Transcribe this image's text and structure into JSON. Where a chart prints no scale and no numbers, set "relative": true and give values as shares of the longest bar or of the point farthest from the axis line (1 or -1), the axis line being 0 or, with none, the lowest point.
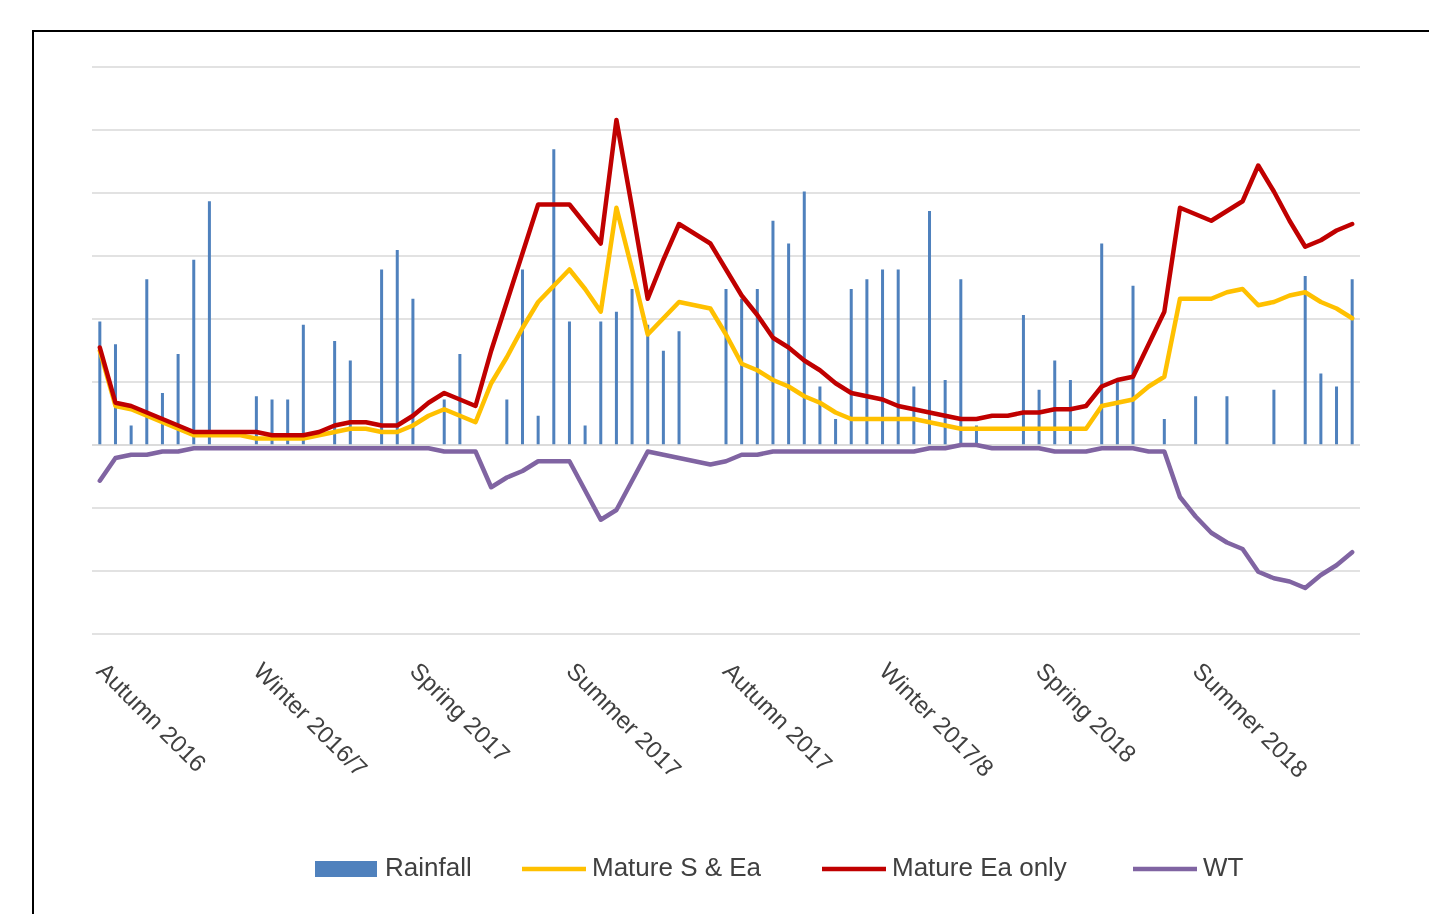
{
  "chart_data": {
    "type": "line",
    "relative": true,
    "grid": "y",
    "legend": "bottom",
    "categories": [
      "Autumn 2016",
      null,
      null,
      null,
      null,
      null,
      null,
      null,
      null,
      null,
      "Winter 2016/7",
      null,
      null,
      null,
      null,
      null,
      null,
      null,
      null,
      null,
      "Spring 2017",
      null,
      null,
      null,
      null,
      null,
      null,
      null,
      null,
      null,
      "Summer 2017",
      null,
      null,
      null,
      null,
      null,
      null,
      null,
      null,
      null,
      "Autumn 2017",
      null,
      null,
      null,
      null,
      null,
      null,
      null,
      null,
      null,
      "Winter 2017/8",
      null,
      null,
      null,
      null,
      null,
      null,
      null,
      null,
      null,
      "Spring 2018",
      null,
      null,
      null,
      null,
      null,
      null,
      null,
      null,
      null,
      "Summer 2018",
      null,
      null,
      null,
      null,
      null,
      null,
      null,
      null,
      null,
      null
    ],
    "series": [
      {
        "name": "Rainfall",
        "type": "bar",
        "color": "#4f81bd",
        "values": [
          0.38,
          0.31,
          0.06,
          0.51,
          0.16,
          0.28,
          0.57,
          0.75,
          0,
          0,
          0.15,
          0.14,
          0.14,
          0.37,
          0,
          0.32,
          0.26,
          0,
          0.54,
          0.6,
          0.45,
          0,
          0.14,
          0.28,
          null,
          0,
          0.14,
          0.54,
          0.09,
          0.91,
          0.38,
          0.06,
          0.38,
          0.41,
          0.48,
          0.37,
          0.29,
          0.35,
          0,
          0,
          0.48,
          0.45,
          0.48,
          0.69,
          0.62,
          0.78,
          0.18,
          0.08,
          0.48,
          0.51,
          0.54,
          0.54,
          0.18,
          0.72,
          0.2,
          0.51,
          0.06,
          0,
          0,
          0.4,
          0.17,
          0.26,
          0.2,
          0,
          0.62,
          0.2,
          0.49,
          0,
          0.08,
          0,
          0.15,
          0,
          0.15,
          0,
          0,
          0.17,
          0,
          0.52,
          0.22,
          0.18,
          0.51
        ]
      },
      {
        "name": "Mature S & Ea",
        "color": "#ffc000",
        "values": [
          0.29,
          0.12,
          0.11,
          0.09,
          0.07,
          0.05,
          0.03,
          0.03,
          0.03,
          0.03,
          0.02,
          0.02,
          0.02,
          0.02,
          0.03,
          0.04,
          0.05,
          0.05,
          0.04,
          0.04,
          0.06,
          0.09,
          0.11,
          0.09,
          0.07,
          0.19,
          0.27,
          0.36,
          0.44,
          0.49,
          0.54,
          0.48,
          0.41,
          0.73,
          0.54,
          0.34,
          0.39,
          0.44,
          0.43,
          0.42,
          0.34,
          0.25,
          0.23,
          0.2,
          0.18,
          0.15,
          0.13,
          0.1,
          0.08,
          0.08,
          0.08,
          0.08,
          0.08,
          0.07,
          0.06,
          0.05,
          0.05,
          0.05,
          0.05,
          0.05,
          0.05,
          0.05,
          0.05,
          0.05,
          0.12,
          0.13,
          0.14,
          0.18,
          0.21,
          0.45,
          0.45,
          0.45,
          0.47,
          0.48,
          0.43,
          0.44,
          0.46,
          0.47,
          0.44,
          0.42,
          0.39
        ]
      },
      {
        "name": "Mature Ea only",
        "color": "#c00000",
        "values": [
          0.3,
          0.13,
          0.12,
          0.1,
          0.08,
          0.06,
          0.04,
          0.04,
          0.04,
          0.04,
          0.04,
          0.03,
          0.03,
          0.03,
          0.04,
          0.06,
          0.07,
          0.07,
          0.06,
          0.06,
          0.09,
          0.13,
          0.16,
          0.14,
          0.12,
          0.29,
          0.44,
          0.59,
          0.74,
          0.74,
          0.74,
          0.68,
          0.62,
          1.0,
          0.73,
          0.45,
          0.57,
          0.68,
          0.65,
          0.62,
          0.54,
          0.46,
          0.4,
          0.33,
          0.3,
          0.26,
          0.23,
          0.19,
          0.16,
          0.15,
          0.14,
          0.12,
          0.11,
          0.1,
          0.09,
          0.08,
          0.08,
          0.09,
          0.09,
          0.1,
          0.1,
          0.11,
          0.11,
          0.12,
          0.18,
          0.2,
          0.21,
          0.31,
          0.41,
          0.73,
          0.71,
          0.69,
          0.72,
          0.75,
          0.86,
          0.78,
          0.69,
          0.61,
          0.63,
          0.66,
          0.68
        ]
      },
      {
        "name": "WT",
        "color": "#8064a2",
        "values": [
          -0.11,
          -0.04,
          -0.03,
          -0.03,
          -0.02,
          -0.02,
          -0.01,
          -0.01,
          -0.01,
          -0.01,
          -0.01,
          -0.01,
          -0.01,
          -0.01,
          -0.01,
          -0.01,
          -0.01,
          -0.01,
          -0.01,
          -0.01,
          -0.01,
          -0.01,
          -0.02,
          -0.02,
          -0.02,
          -0.13,
          -0.1,
          -0.08,
          -0.05,
          -0.05,
          -0.05,
          -0.14,
          -0.23,
          -0.2,
          -0.11,
          -0.02,
          -0.03,
          -0.04,
          -0.05,
          -0.06,
          -0.05,
          -0.03,
          -0.03,
          -0.02,
          -0.02,
          -0.02,
          -0.02,
          -0.02,
          -0.02,
          -0.02,
          -0.02,
          -0.02,
          -0.02,
          -0.01,
          -0.01,
          0,
          0,
          -0.01,
          -0.01,
          -0.01,
          -0.01,
          -0.02,
          -0.02,
          -0.02,
          -0.01,
          -0.01,
          -0.01,
          -0.02,
          -0.02,
          -0.16,
          -0.22,
          -0.27,
          -0.3,
          -0.32,
          -0.39,
          -0.41,
          -0.42,
          -0.44,
          -0.4,
          -0.37,
          -0.33
        ]
      }
    ]
  }
}
